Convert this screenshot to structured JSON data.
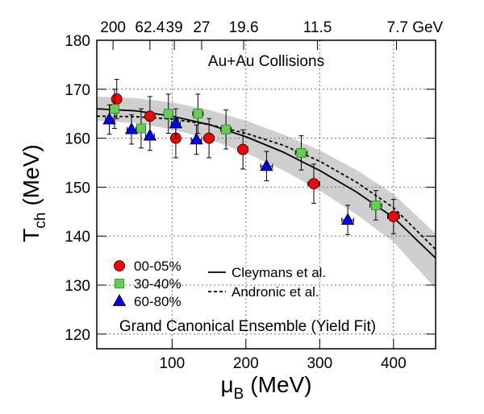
{
  "chart_data": {
    "type": "scatter",
    "annotations": [
      "Au+Au Collisions",
      "Grand Canonical Ensemble (Yield Fit)"
    ],
    "x_label": {
      "symbol": "μ",
      "sub": "B",
      "unit": "(MeV)"
    },
    "y_label": {
      "symbol": "T",
      "sub": "ch",
      "unit": "(MeV)"
    },
    "xlim": [
      -2,
      457
    ],
    "ylim": [
      117,
      180
    ],
    "xticks": [
      100,
      200,
      300,
      400
    ],
    "yticks": [
      120,
      130,
      140,
      150,
      160,
      170,
      180
    ],
    "x2ticks": [
      {
        "value": 20,
        "label": "200"
      },
      {
        "value": 70,
        "label": "62.4"
      },
      {
        "value": 103,
        "label": "39"
      },
      {
        "value": 140,
        "label": "27"
      },
      {
        "value": 197,
        "label": "19.6"
      },
      {
        "value": 297,
        "label": "11.5"
      },
      {
        "value": 404,
        "label": "7.7 GeV"
      }
    ],
    "grid": true,
    "series": [
      {
        "name": "00-05%",
        "marker": "circle",
        "color": "#ff0000",
        "x": [
          25,
          70,
          105,
          150,
          196,
          292,
          400
        ],
        "values": [
          168,
          164.5,
          160,
          160,
          157.7,
          150.7,
          144
        ],
        "xerr": [
          5,
          6,
          6,
          7,
          7,
          8,
          8
        ],
        "yerr": [
          4,
          4,
          4,
          4,
          4,
          4,
          3.5
        ]
      },
      {
        "name": "30-40%",
        "marker": "square",
        "color": "#66cc55",
        "x": [
          22,
          58,
          95,
          135,
          173,
          275,
          376
        ],
        "values": [
          166,
          162,
          165,
          165,
          161.8,
          157,
          146.3
        ],
        "xerr": [
          5,
          6,
          6,
          7,
          7,
          8,
          8
        ],
        "yerr": [
          4,
          4,
          4,
          4,
          4,
          3.5,
          3
        ]
      },
      {
        "name": "60-80%",
        "marker": "triangle",
        "color": "#0000ff",
        "x": [
          15,
          45,
          70,
          105,
          133,
          228,
          338
        ],
        "values": [
          163.8,
          161.8,
          160.5,
          163,
          159.7,
          154.3,
          143.3
        ],
        "xerr": [
          5,
          6,
          6,
          6,
          7,
          8,
          8
        ],
        "yerr": [
          3,
          3,
          3,
          3,
          3,
          3,
          3
        ]
      }
    ],
    "curves": [
      {
        "name": "Cleymans et al.",
        "dash": "solid",
        "x": [
          -2,
          50,
          100,
          150,
          200,
          250,
          300,
          350,
          400,
          457
        ],
        "values": [
          166,
          165.6,
          164.5,
          162.8,
          160.3,
          157.2,
          153.4,
          149,
          143.8,
          135.5
        ]
      },
      {
        "name": "Andronic et al.",
        "dash": "dashed",
        "x": [
          -2,
          50,
          100,
          150,
          200,
          250,
          300,
          350,
          400,
          457
        ],
        "values": [
          164.5,
          164.4,
          163.9,
          162.8,
          161,
          158.6,
          155.3,
          151,
          145.8,
          137.3
        ]
      }
    ],
    "band": {
      "color": "#cfcfcf",
      "x": [
        -2,
        50,
        100,
        150,
        200,
        250,
        300,
        350,
        400,
        457
      ],
      "upper": [
        168.5,
        168.2,
        167.3,
        165.8,
        163.6,
        160.8,
        157.5,
        153.5,
        148.6,
        140.5
      ],
      "lower": [
        163.6,
        163.1,
        161.8,
        159.8,
        157,
        153.5,
        149.3,
        144.4,
        138.8,
        129.3
      ]
    }
  }
}
